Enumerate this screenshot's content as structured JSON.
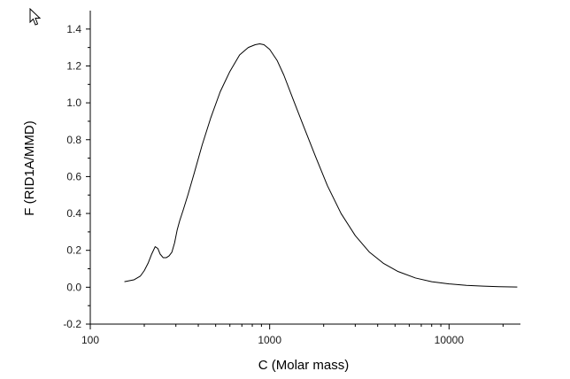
{
  "chart_data": {
    "type": "line",
    "xlabel": "C (Molar mass)",
    "ylabel": "F (RID1A/MMD)",
    "x_scale": "log",
    "xlim": [
      100,
      25000
    ],
    "ylim": [
      -0.2,
      1.5
    ],
    "x_ticks": [
      {
        "value": 100,
        "label": "100"
      },
      {
        "value": 1000,
        "label": "1000"
      },
      {
        "value": 10000,
        "label": "10000"
      }
    ],
    "y_ticks": [
      {
        "value": -0.2,
        "label": "-0.2"
      },
      {
        "value": 0.0,
        "label": "0.0"
      },
      {
        "value": 0.2,
        "label": "0.2"
      },
      {
        "value": 0.4,
        "label": "0.4"
      },
      {
        "value": 0.6,
        "label": "0.6"
      },
      {
        "value": 0.8,
        "label": "0.8"
      },
      {
        "value": 1.0,
        "label": "1.0"
      },
      {
        "value": 1.2,
        "label": "1.2"
      },
      {
        "value": 1.4,
        "label": "1.4"
      }
    ],
    "grid": false,
    "line_color": "#000000",
    "axis_color": "#000000",
    "tick_label_color": "#1a1a1a",
    "series": [
      {
        "x": [
          155,
          175,
          190,
          200,
          210,
          220,
          230,
          238,
          245,
          255,
          265,
          275,
          285,
          295,
          305,
          315,
          330,
          350,
          380,
          420,
          470,
          530,
          600,
          680,
          760,
          830,
          880,
          930,
          1000,
          1100,
          1200,
          1350,
          1550,
          1800,
          2100,
          2500,
          3000,
          3600,
          4300,
          5200,
          6500,
          8000,
          10000,
          12500,
          15500,
          19000,
          24000
        ],
        "y": [
          0.03,
          0.04,
          0.06,
          0.09,
          0.13,
          0.18,
          0.22,
          0.21,
          0.18,
          0.16,
          0.16,
          0.17,
          0.19,
          0.24,
          0.31,
          0.36,
          0.42,
          0.5,
          0.62,
          0.77,
          0.92,
          1.06,
          1.17,
          1.26,
          1.3,
          1.315,
          1.32,
          1.315,
          1.29,
          1.23,
          1.15,
          1.02,
          0.87,
          0.71,
          0.55,
          0.4,
          0.28,
          0.19,
          0.13,
          0.085,
          0.05,
          0.03,
          0.018,
          0.01,
          0.006,
          0.003,
          0.001
        ]
      }
    ]
  }
}
